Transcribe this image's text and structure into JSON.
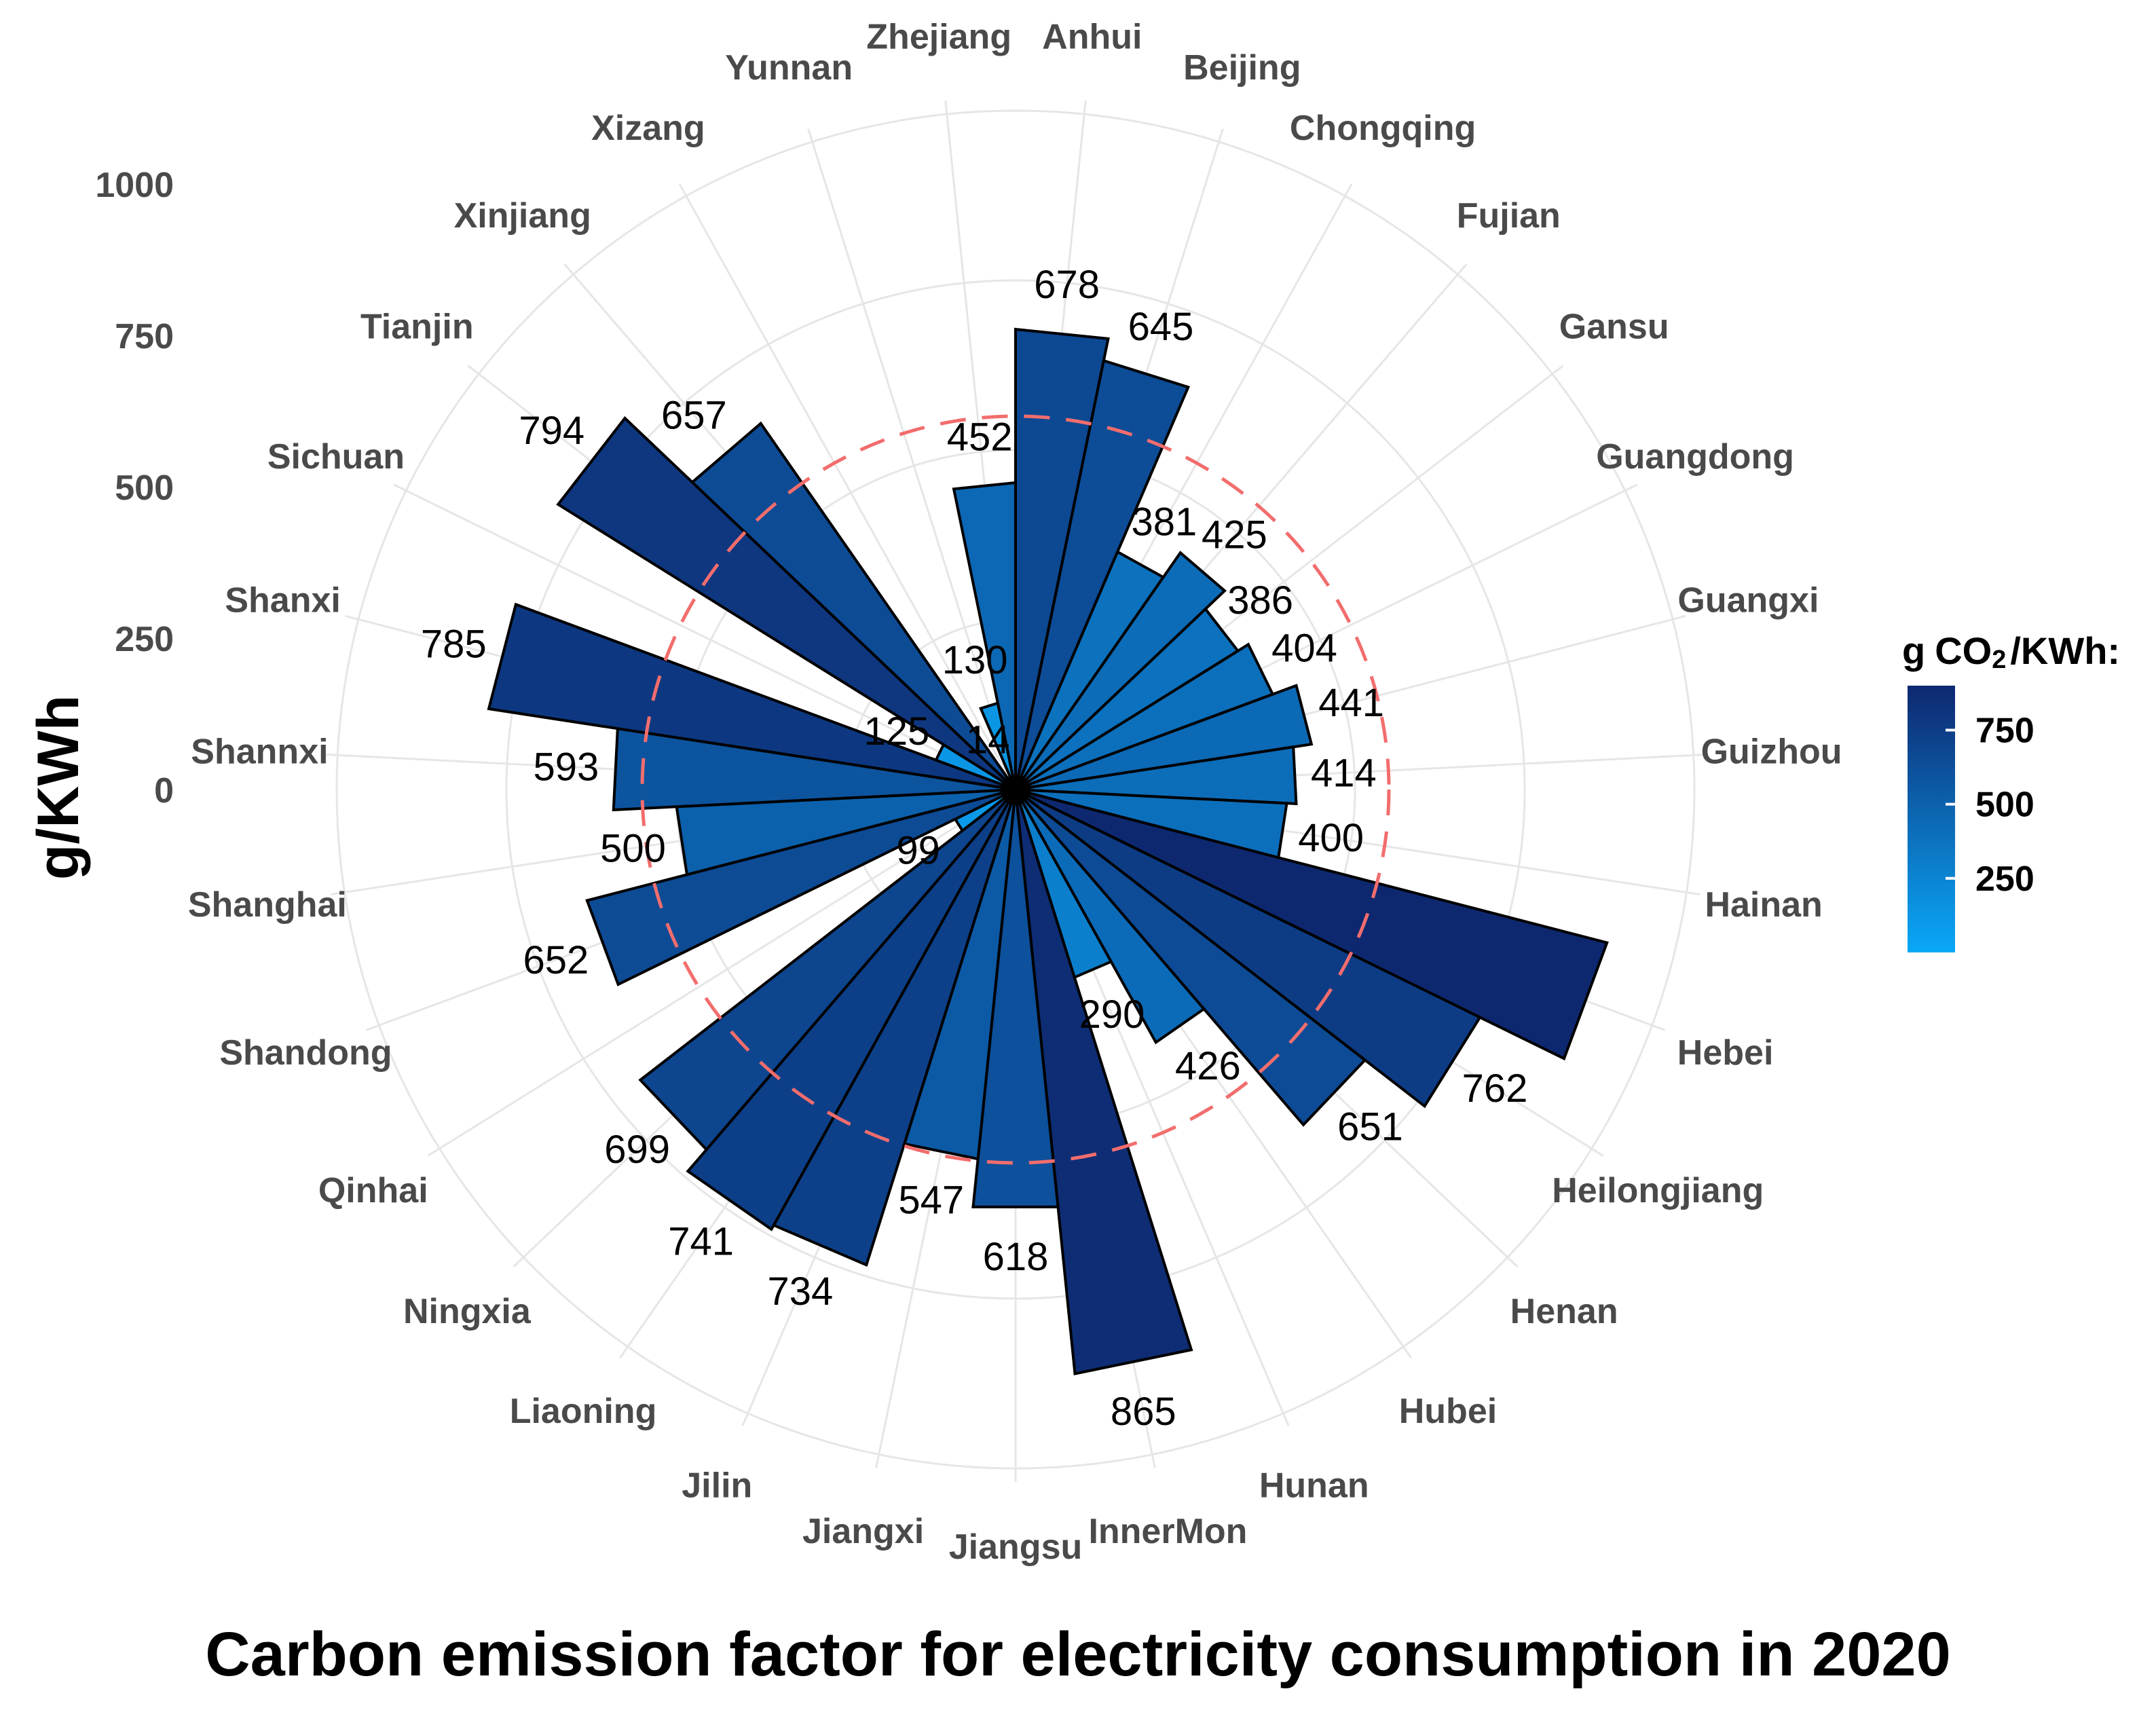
{
  "title": "Carbon emission factor for electricity consumption in 2020",
  "colors": {
    "low": "#0AA8F8",
    "high": "#0E2870",
    "reference_line": "#f26d6d",
    "grid": "#e6e6e6"
  },
  "chart_data": {
    "type": "polar-bar",
    "ylabel": "g/KWh",
    "ylim": [
      0,
      1000
    ],
    "yticks": [
      "0",
      "250",
      "500",
      "750",
      "1000"
    ],
    "reference_line_value": 550,
    "legend": {
      "title_prefix": "g",
      "title_mid": "CO",
      "title_sub": "2",
      "title_suffix": "/KWh:",
      "ticks": [
        "750",
        "500",
        "250"
      ],
      "range": [
        0,
        900
      ]
    },
    "categories": [
      "Anhui",
      "Beijing",
      "Chongqing",
      "Fujian",
      "Gansu",
      "Guangdong",
      "Guangxi",
      "Guizhou",
      "Hainan",
      "Hebei",
      "Heilongjiang",
      "Henan",
      "Hubei",
      "Hunan",
      "InnerMon",
      "Jiangsu",
      "Jiangxi",
      "Jilin",
      "Liaoning",
      "Ningxia",
      "Qinhai",
      "Shandong",
      "Shanghai",
      "Shannxi",
      "Shanxi",
      "Sichuan",
      "Tianjin",
      "Xinjiang",
      "Xizang",
      "Yunnan",
      "Zhejiang"
    ],
    "values": [
      678,
      645,
      381,
      425,
      386,
      404,
      441,
      414,
      400,
      900,
      762,
      651,
      426,
      290,
      865,
      618,
      547,
      734,
      741,
      699,
      99,
      652,
      500,
      593,
      785,
      125,
      794,
      657,
      14,
      130,
      452
    ],
    "labels": [
      "678",
      "645",
      "381",
      "425",
      "386",
      "404",
      "441",
      "414",
      "400",
      "",
      "762",
      "651",
      "426",
      "290",
      "865",
      "618",
      "547",
      "734",
      "741",
      "699",
      "99",
      "652",
      "500",
      "593",
      "785",
      "125",
      "794",
      "657",
      "14",
      "130",
      "452"
    ]
  }
}
